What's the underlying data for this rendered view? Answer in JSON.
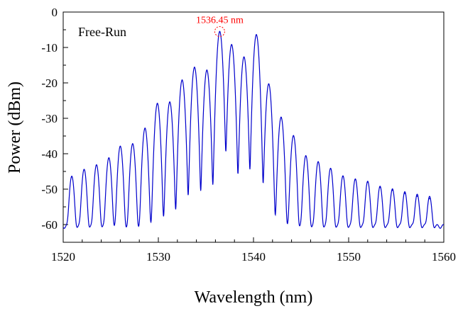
{
  "chart_data": {
    "type": "line",
    "title": "",
    "xlabel": "Wavelength (nm)",
    "ylabel": "Power (dBm)",
    "xlim": [
      1520,
      1560
    ],
    "ylim": [
      -65,
      0
    ],
    "xticks": [
      1520,
      1530,
      1540,
      1550,
      1560
    ],
    "yticks": [
      0,
      -10,
      -20,
      -30,
      -40,
      -50,
      -60
    ],
    "grid": false,
    "legend": "none",
    "annotation_text": "Free-Run",
    "peak_label": "1536.45 nm",
    "peak_marker": {
      "x": 1536.45,
      "y": -5.5
    },
    "baseline_dbm": -60.5,
    "peak_width_nm": 0.22,
    "series": [
      {
        "color": "#0000cc",
        "peaks": [
          {
            "x": 1520.9,
            "y": -46.5
          },
          {
            "x": 1522.2,
            "y": -44.5
          },
          {
            "x": 1523.5,
            "y": -43.2
          },
          {
            "x": 1524.8,
            "y": -41.2
          },
          {
            "x": 1526.0,
            "y": -37.9
          },
          {
            "x": 1527.3,
            "y": -37.2
          },
          {
            "x": 1528.6,
            "y": -32.8
          },
          {
            "x": 1529.9,
            "y": -25.8
          },
          {
            "x": 1531.2,
            "y": -25.4
          },
          {
            "x": 1532.5,
            "y": -19.2
          },
          {
            "x": 1533.8,
            "y": -15.6
          },
          {
            "x": 1535.1,
            "y": -16.4
          },
          {
            "x": 1536.45,
            "y": -5.5
          },
          {
            "x": 1537.7,
            "y": -9.2
          },
          {
            "x": 1539.0,
            "y": -12.7
          },
          {
            "x": 1540.3,
            "y": -6.4
          },
          {
            "x": 1541.6,
            "y": -20.3
          },
          {
            "x": 1542.9,
            "y": -29.7
          },
          {
            "x": 1544.2,
            "y": -34.9
          },
          {
            "x": 1545.5,
            "y": -40.6
          },
          {
            "x": 1546.8,
            "y": -42.3
          },
          {
            "x": 1548.1,
            "y": -44.2
          },
          {
            "x": 1549.4,
            "y": -46.4
          },
          {
            "x": 1550.7,
            "y": -47.3
          },
          {
            "x": 1552.0,
            "y": -48.0
          },
          {
            "x": 1553.3,
            "y": -49.5
          },
          {
            "x": 1554.6,
            "y": -50.3
          },
          {
            "x": 1555.9,
            "y": -51.2
          },
          {
            "x": 1557.2,
            "y": -52.0
          },
          {
            "x": 1558.5,
            "y": -52.7
          }
        ]
      }
    ]
  }
}
